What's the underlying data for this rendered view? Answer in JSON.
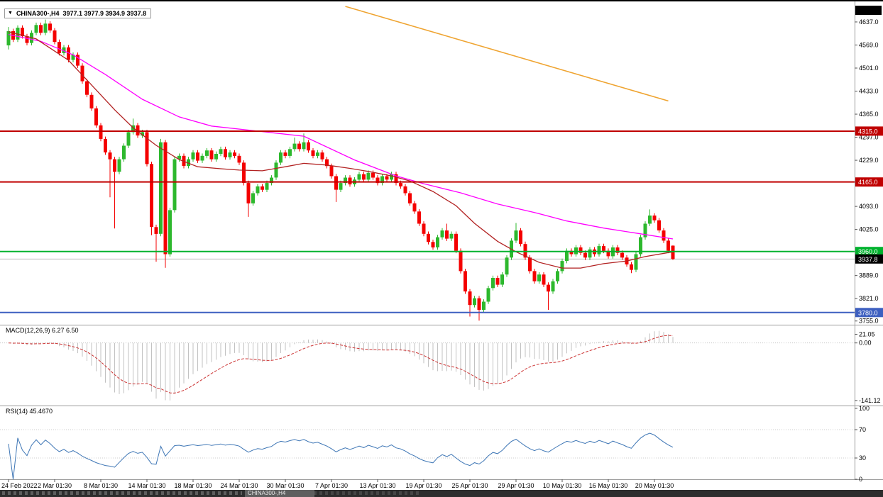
{
  "header": {
    "symbol_period": "CHINA300-,H4",
    "ohlc": "3977.1 3977.9 3934.9 3937.8",
    "dropdown_glyph": "▼"
  },
  "colors": {
    "bull": "#2DB82D",
    "bear": "#F40000",
    "ma_slow": "#FF00FF",
    "ma_medium": "#B22222",
    "trendline": "#EFA431",
    "macd_bar": "#C2C2C2",
    "macd_signal": "#CC3333",
    "rsi": "#3E76B5",
    "level_red": "#C00000",
    "level_green": "#00B22D",
    "level_blue": "#3D5FC0",
    "current_line": "#B8B8B8"
  },
  "price_axis": {
    "labels": [
      {
        "text": "4637.0",
        "price": 4637
      },
      {
        "text": "4569.0",
        "price": 4569
      },
      {
        "text": "4501.0",
        "price": 4501
      },
      {
        "text": "4433.0",
        "price": 4433
      },
      {
        "text": "4365.0",
        "price": 4365
      },
      {
        "text": "4297.0",
        "price": 4297
      },
      {
        "text": "4229.0",
        "price": 4229
      },
      {
        "text": "4093.0",
        "price": 4093
      },
      {
        "text": "4025.0",
        "price": 4025
      },
      {
        "text": "3889.0",
        "price": 3889
      },
      {
        "text": "3821.0",
        "price": 3821
      },
      {
        "text": "3755.0",
        "price": 3755
      }
    ],
    "badges": [
      {
        "text": "4315.0",
        "price": 4315,
        "bg": "#C00000"
      },
      {
        "text": "4165.0",
        "price": 4165,
        "bg": "#C00000"
      },
      {
        "text": "3960.0",
        "price": 3960,
        "bg": "#00B22D"
      },
      {
        "text": "3780.0",
        "price": 3780,
        "bg": "#3D5FC0"
      },
      {
        "text": "3937.8",
        "price": 3937.8,
        "bg": "#000000"
      }
    ]
  },
  "indicators": {
    "macd": {
      "label": "MACD(12,26,9) 6.27 6.50",
      "params": {
        "fast": 12,
        "slow": 26,
        "signal": 9
      },
      "values": {
        "main": "6.27",
        "signal": "6.50"
      },
      "axis": [
        {
          "text": "21.05",
          "v": 21.05
        },
        {
          "text": "0.00",
          "v": 0
        },
        {
          "text": "-141.12",
          "v": -141.12
        }
      ]
    },
    "rsi": {
      "label": "RSI(14) 45.4670",
      "params": {
        "period": 14
      },
      "value": "45.4670",
      "levels": [
        70,
        30
      ],
      "axis": [
        {
          "text": "100",
          "v": 100
        },
        {
          "text": "70",
          "v": 70
        },
        {
          "text": "30",
          "v": 30
        },
        {
          "text": "0",
          "v": 0
        }
      ]
    }
  },
  "bottom_bar": {
    "active_tab": "CHINA300-,H4"
  },
  "chart_data": {
    "type": "candlestick",
    "symbol": "CHINA300-",
    "timeframe": "H4",
    "current_price": 3937.8,
    "price_range": {
      "min": 3744,
      "max": 4685
    },
    "levels": [
      {
        "price": 4315,
        "color": "#C00000"
      },
      {
        "price": 4165,
        "color": "#C00000"
      },
      {
        "price": 3960,
        "color": "#00B22D"
      },
      {
        "price": 3780,
        "color": "#3D5FC0"
      }
    ],
    "x_labels": [
      {
        "i": 0,
        "text": "24 Feb 2022"
      },
      {
        "i": 10,
        "text": "2 Mar 01:30"
      },
      {
        "i": 20,
        "text": "8 Mar 01:30"
      },
      {
        "i": 30,
        "text": "14 Mar 01:30"
      },
      {
        "i": 40,
        "text": "18 Mar 01:30"
      },
      {
        "i": 50,
        "text": "24 Mar 01:30"
      },
      {
        "i": 60,
        "text": "30 Mar 01:30"
      },
      {
        "i": 70,
        "text": "7 Apr 01:30"
      },
      {
        "i": 80,
        "text": "13 Apr 01:30"
      },
      {
        "i": 90,
        "text": "19 Apr 01:30"
      },
      {
        "i": 100,
        "text": "25 Apr 01:30"
      },
      {
        "i": 110,
        "text": "29 Apr 01:30"
      },
      {
        "i": 120,
        "text": "10 May 01:30"
      },
      {
        "i": 130,
        "text": "16 May 01:30"
      },
      {
        "i": 140,
        "text": "20 May 01:30"
      }
    ],
    "ma_slow": [
      [
        0,
        4600
      ],
      [
        7,
        4580
      ],
      [
        14,
        4540
      ],
      [
        21,
        4482
      ],
      [
        29,
        4409
      ],
      [
        37,
        4357
      ],
      [
        44,
        4330
      ],
      [
        52,
        4318
      ],
      [
        64,
        4300
      ],
      [
        75,
        4230
      ],
      [
        84,
        4183
      ],
      [
        90,
        4160
      ],
      [
        98,
        4133
      ],
      [
        106,
        4100
      ],
      [
        114,
        4075
      ],
      [
        121,
        4050
      ],
      [
        129,
        4029
      ],
      [
        137,
        4012
      ],
      [
        144,
        3997
      ]
    ],
    "ma_medium": [
      [
        0,
        4608
      ],
      [
        6,
        4587
      ],
      [
        13,
        4524
      ],
      [
        18,
        4451
      ],
      [
        23,
        4378
      ],
      [
        27,
        4325
      ],
      [
        32,
        4273
      ],
      [
        37,
        4231
      ],
      [
        41,
        4210
      ],
      [
        46,
        4204
      ],
      [
        50,
        4200
      ],
      [
        55,
        4198
      ],
      [
        60,
        4210
      ],
      [
        64,
        4220
      ],
      [
        69,
        4215
      ],
      [
        74,
        4205
      ],
      [
        78,
        4196
      ],
      [
        83,
        4183
      ],
      [
        87,
        4168
      ],
      [
        92,
        4137
      ],
      [
        97,
        4095
      ],
      [
        101,
        4043
      ],
      [
        106,
        3990
      ],
      [
        110,
        3959
      ],
      [
        115,
        3928
      ],
      [
        120,
        3911
      ],
      [
        124,
        3911
      ],
      [
        129,
        3924
      ],
      [
        134,
        3932
      ],
      [
        138,
        3945
      ],
      [
        144,
        3959
      ]
    ],
    "trendline": [
      [
        73,
        4683
      ],
      [
        143,
        4404
      ]
    ],
    "candles": [
      [
        4568,
        4622,
        4556,
        4610
      ],
      [
        4610,
        4617,
        4578,
        4585
      ],
      [
        4585,
        4627,
        4578,
        4620
      ],
      [
        4620,
        4627,
        4588,
        4595
      ],
      [
        4595,
        4602,
        4568,
        4575
      ],
      [
        4575,
        4612,
        4568,
        4605
      ],
      [
        4605,
        4635,
        4598,
        4628
      ],
      [
        4628,
        4635,
        4598,
        4605
      ],
      [
        4605,
        4644,
        4598,
        4632
      ],
      [
        4632,
        4639,
        4605,
        4612
      ],
      [
        4612,
        4619,
        4571,
        4578
      ],
      [
        4578,
        4585,
        4538,
        4545
      ],
      [
        4545,
        4569,
        4538,
        4562
      ],
      [
        4562,
        4569,
        4518,
        4525
      ],
      [
        4525,
        4547,
        4518,
        4540
      ],
      [
        4540,
        4547,
        4501,
        4508
      ],
      [
        4508,
        4515,
        4455,
        4462
      ],
      [
        4462,
        4469,
        4415,
        4422
      ],
      [
        4422,
        4429,
        4375,
        4382
      ],
      [
        4382,
        4389,
        4325,
        4332
      ],
      [
        4332,
        4339,
        4285,
        4292
      ],
      [
        4292,
        4299,
        4245,
        4252
      ],
      [
        4252,
        4259,
        4120,
        4232
      ],
      [
        4232,
        4239,
        4028,
        4195
      ],
      [
        4195,
        4239,
        4188,
        4232
      ],
      [
        4232,
        4279,
        4225,
        4272
      ],
      [
        4272,
        4319,
        4265,
        4312
      ],
      [
        4312,
        4352,
        4305,
        4332
      ],
      [
        4332,
        4339,
        4295,
        4302
      ],
      [
        4302,
        4319,
        4295,
        4312
      ],
      [
        4312,
        4319,
        4211,
        4218
      ],
      [
        4218,
        4225,
        4008,
        4032
      ],
      [
        4032,
        4039,
        3930,
        4012
      ],
      [
        4012,
        4292,
        4005,
        4282
      ],
      [
        4282,
        4289,
        3912,
        3952
      ],
      [
        3952,
        4089,
        3945,
        4082
      ],
      [
        4082,
        4239,
        4075,
        4232
      ],
      [
        4232,
        4249,
        4225,
        4242
      ],
      [
        4242,
        4249,
        4205,
        4212
      ],
      [
        4212,
        4239,
        4205,
        4232
      ],
      [
        4232,
        4259,
        4225,
        4252
      ],
      [
        4252,
        4259,
        4221,
        4228
      ],
      [
        4228,
        4249,
        4221,
        4242
      ],
      [
        4242,
        4265,
        4235,
        4258
      ],
      [
        4258,
        4265,
        4225,
        4232
      ],
      [
        4232,
        4255,
        4225,
        4248
      ],
      [
        4248,
        4269,
        4241,
        4262
      ],
      [
        4262,
        4269,
        4231,
        4238
      ],
      [
        4238,
        4259,
        4231,
        4252
      ],
      [
        4252,
        4259,
        4235,
        4242
      ],
      [
        4242,
        4249,
        4215,
        4222
      ],
      [
        4222,
        4229,
        4155,
        4162
      ],
      [
        4162,
        4169,
        4062,
        4102
      ],
      [
        4102,
        4139,
        4095,
        4132
      ],
      [
        4132,
        4159,
        4125,
        4152
      ],
      [
        4152,
        4159,
        4135,
        4142
      ],
      [
        4142,
        4169,
        4135,
        4162
      ],
      [
        4162,
        4185,
        4155,
        4178
      ],
      [
        4178,
        4229,
        4171,
        4222
      ],
      [
        4222,
        4259,
        4215,
        4252
      ],
      [
        4252,
        4259,
        4235,
        4242
      ],
      [
        4242,
        4269,
        4235,
        4262
      ],
      [
        4262,
        4296,
        4255,
        4278
      ],
      [
        4278,
        4285,
        4255,
        4262
      ],
      [
        4262,
        4308,
        4255,
        4282
      ],
      [
        4282,
        4289,
        4251,
        4258
      ],
      [
        4258,
        4265,
        4235,
        4242
      ],
      [
        4242,
        4259,
        4235,
        4252
      ],
      [
        4252,
        4259,
        4225,
        4232
      ],
      [
        4232,
        4239,
        4205,
        4212
      ],
      [
        4212,
        4219,
        4175,
        4182
      ],
      [
        4182,
        4189,
        4106,
        4142
      ],
      [
        4142,
        4169,
        4135,
        4162
      ],
      [
        4162,
        4185,
        4155,
        4178
      ],
      [
        4178,
        4185,
        4151,
        4158
      ],
      [
        4158,
        4179,
        4151,
        4172
      ],
      [
        4172,
        4195,
        4165,
        4188
      ],
      [
        4188,
        4195,
        4165,
        4172
      ],
      [
        4172,
        4199,
        4165,
        4192
      ],
      [
        4192,
        4199,
        4171,
        4178
      ],
      [
        4178,
        4185,
        4155,
        4162
      ],
      [
        4162,
        4189,
        4155,
        4182
      ],
      [
        4182,
        4189,
        4165,
        4172
      ],
      [
        4172,
        4195,
        4165,
        4188
      ],
      [
        4188,
        4195,
        4155,
        4162
      ],
      [
        4162,
        4169,
        4145,
        4152
      ],
      [
        4152,
        4159,
        4125,
        4132
      ],
      [
        4132,
        4139,
        4095,
        4102
      ],
      [
        4102,
        4109,
        4071,
        4078
      ],
      [
        4078,
        4085,
        4035,
        4042
      ],
      [
        4042,
        4049,
        4005,
        4012
      ],
      [
        4012,
        4019,
        3981,
        3988
      ],
      [
        3988,
        3995,
        3965,
        3972
      ],
      [
        3972,
        4009,
        3965,
        4002
      ],
      [
        4002,
        4029,
        3995,
        4022
      ],
      [
        4022,
        4042,
        3991,
        3998
      ],
      [
        3998,
        4019,
        3991,
        4012
      ],
      [
        4012,
        4019,
        3955,
        3962
      ],
      [
        3962,
        3969,
        3895,
        3902
      ],
      [
        3902,
        3909,
        3835,
        3842
      ],
      [
        3842,
        3849,
        3768,
        3802
      ],
      [
        3802,
        3829,
        3795,
        3822
      ],
      [
        3822,
        3829,
        3756,
        3788
      ],
      [
        3788,
        3819,
        3781,
        3812
      ],
      [
        3812,
        3859,
        3805,
        3852
      ],
      [
        3852,
        3889,
        3845,
        3882
      ],
      [
        3882,
        3889,
        3855,
        3862
      ],
      [
        3862,
        3899,
        3855,
        3892
      ],
      [
        3892,
        3949,
        3885,
        3942
      ],
      [
        3942,
        3999,
        3935,
        3992
      ],
      [
        3992,
        4044,
        3985,
        4022
      ],
      [
        4022,
        4029,
        3975,
        3982
      ],
      [
        3982,
        3989,
        3935,
        3942
      ],
      [
        3942,
        3949,
        3895,
        3902
      ],
      [
        3902,
        3909,
        3865,
        3872
      ],
      [
        3872,
        3899,
        3865,
        3892
      ],
      [
        3892,
        3899,
        3855,
        3862
      ],
      [
        3862,
        3869,
        3788,
        3842
      ],
      [
        3842,
        3879,
        3835,
        3872
      ],
      [
        3872,
        3909,
        3865,
        3902
      ],
      [
        3902,
        3939,
        3895,
        3932
      ],
      [
        3932,
        3969,
        3925,
        3962
      ],
      [
        3962,
        3969,
        3945,
        3952
      ],
      [
        3952,
        3979,
        3945,
        3972
      ],
      [
        3972,
        3979,
        3949,
        3956
      ],
      [
        3956,
        3963,
        3935,
        3942
      ],
      [
        3942,
        3973,
        3935,
        3966
      ],
      [
        3966,
        3973,
        3945,
        3952
      ],
      [
        3952,
        3983,
        3945,
        3976
      ],
      [
        3976,
        3983,
        3955,
        3962
      ],
      [
        3962,
        3969,
        3939,
        3946
      ],
      [
        3946,
        3979,
        3939,
        3972
      ],
      [
        3972,
        3979,
        3949,
        3956
      ],
      [
        3956,
        3963,
        3935,
        3942
      ],
      [
        3942,
        3949,
        3915,
        3922
      ],
      [
        3922,
        3929,
        3896,
        3906
      ],
      [
        3906,
        3959,
        3899,
        3952
      ],
      [
        3952,
        4009,
        3945,
        4002
      ],
      [
        4002,
        4049,
        3995,
        4042
      ],
      [
        4042,
        4084,
        4035,
        4066
      ],
      [
        4066,
        4073,
        4045,
        4052
      ],
      [
        4052,
        4059,
        4015,
        4022
      ],
      [
        4022,
        4029,
        3985,
        3992
      ],
      [
        3992,
        3999,
        3955,
        3962
      ],
      [
        3977.1,
        3977.9,
        3934.9,
        3937.8
      ]
    ]
  }
}
